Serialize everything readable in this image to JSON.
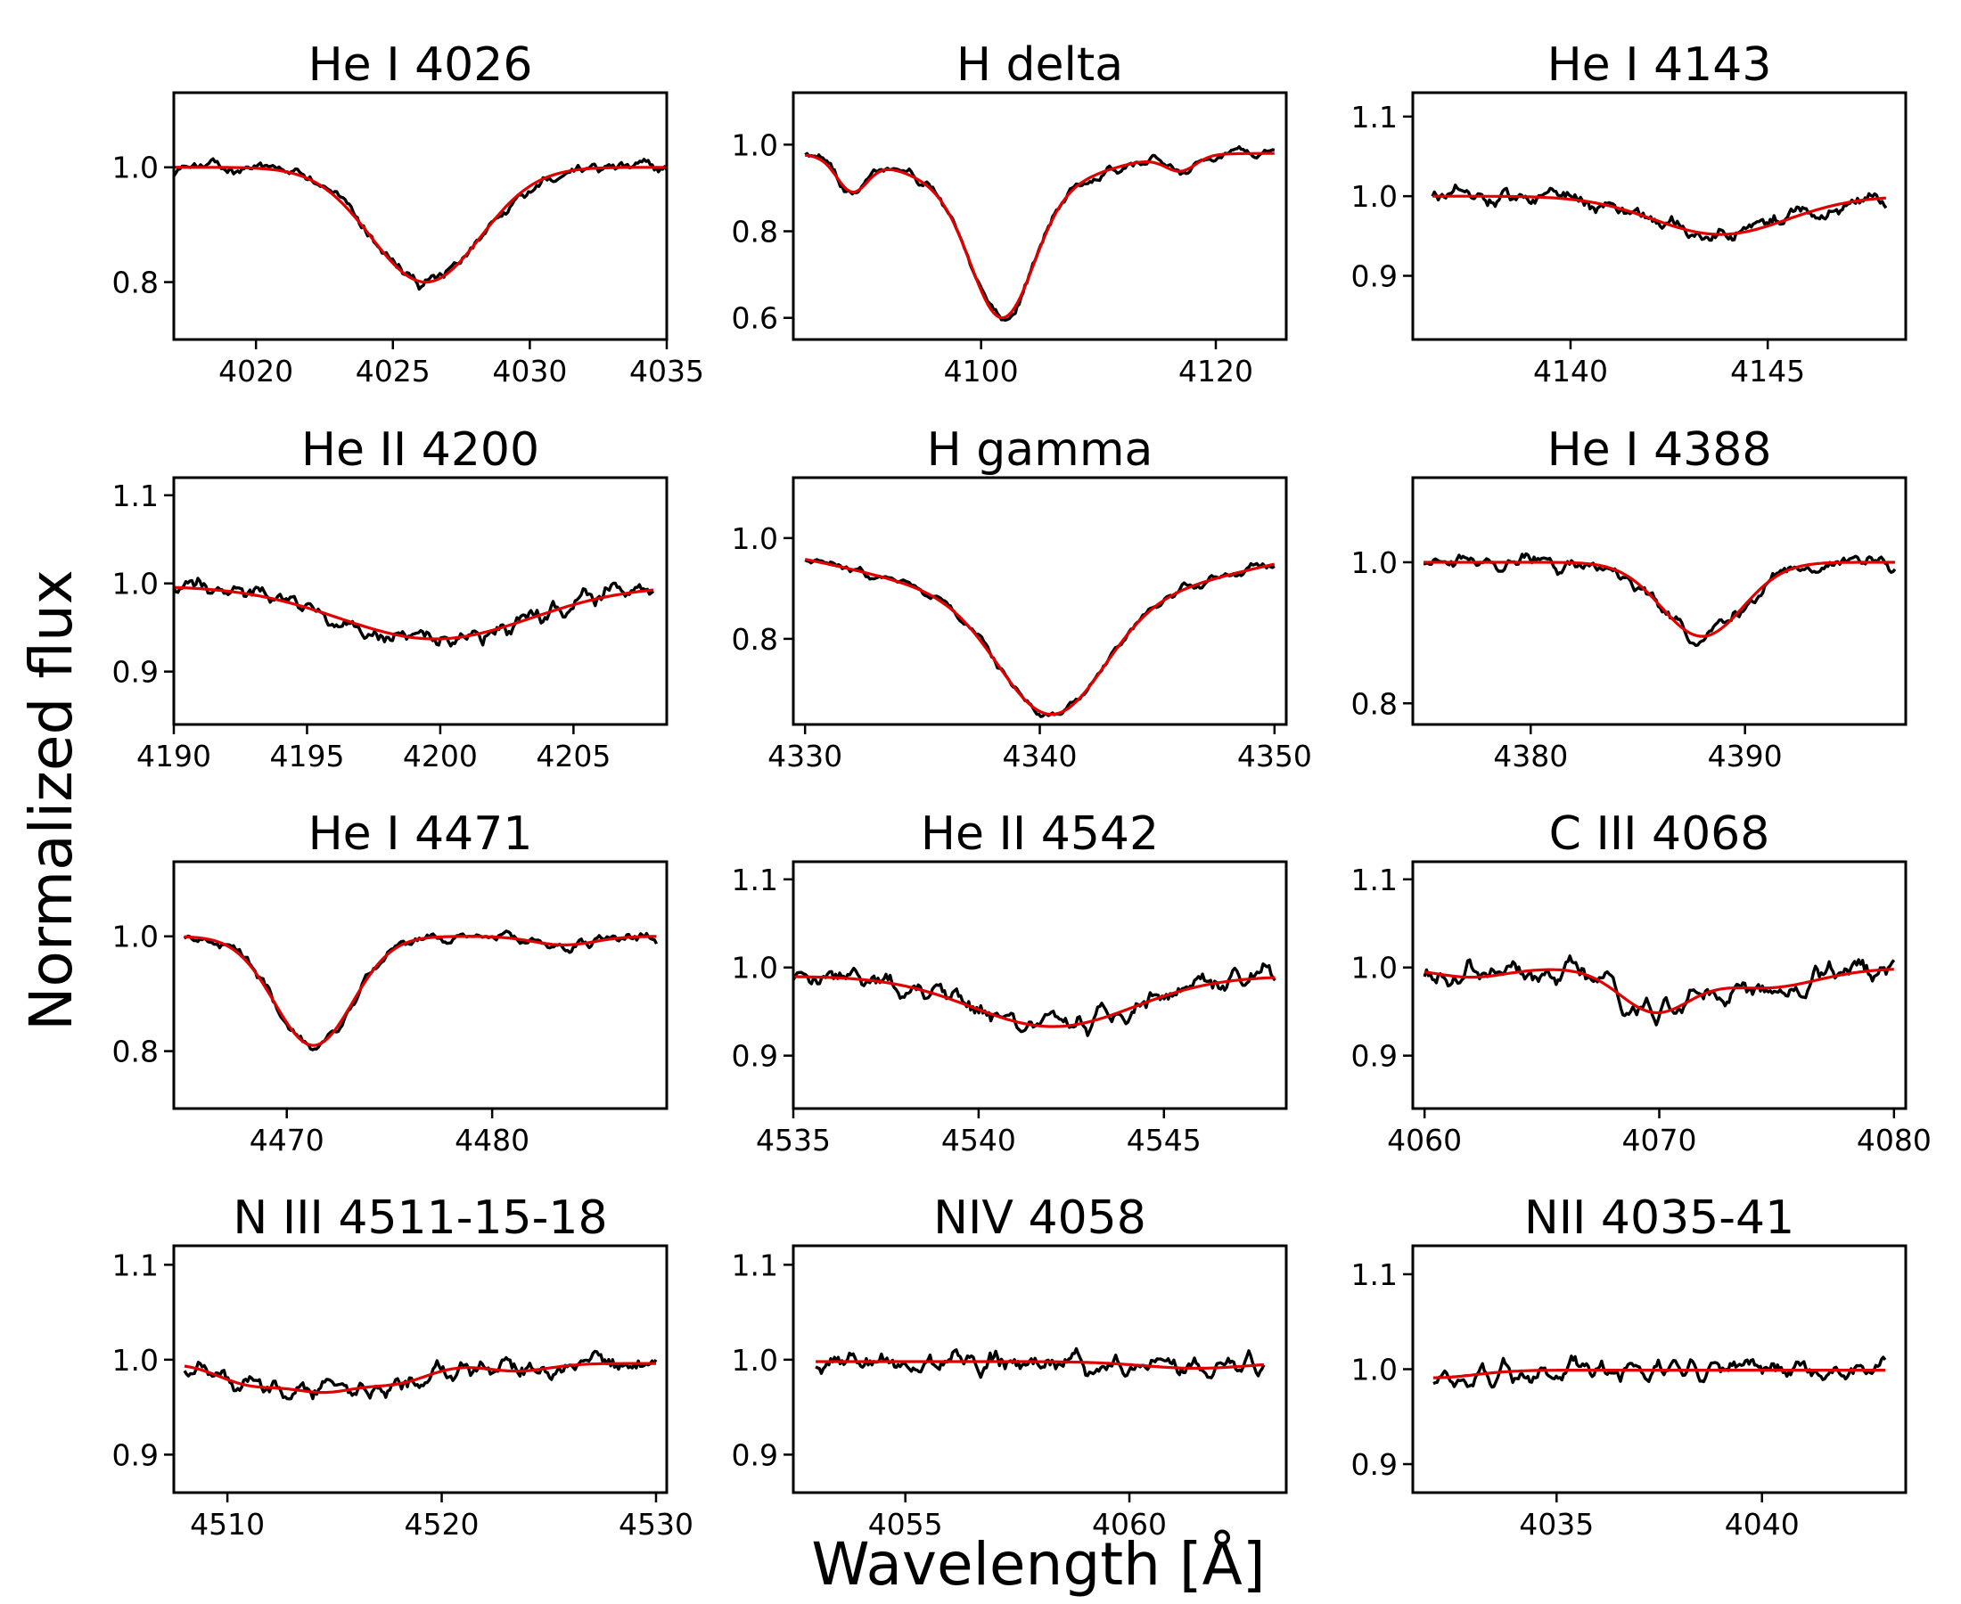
{
  "figure": {
    "xlabel": "Wavelength [Å]",
    "ylabel": "Normalized flux",
    "observed_color": "#000000",
    "model_color": "#e00000"
  },
  "chart_data": [
    {
      "type": "line",
      "title": "He I 4026",
      "xlim": [
        4017,
        4035
      ],
      "ylim": [
        0.7,
        1.13
      ],
      "xticks": [
        4020,
        4025,
        4030,
        4035
      ],
      "yticks": [
        0.8,
        1.0
      ],
      "ytick_labels": [
        "0.8",
        "1.0"
      ],
      "profile": {
        "continuum": 1.0,
        "lines": [
          {
            "center": 4026.2,
            "depth": 0.2,
            "width": 2.0
          }
        ],
        "noise": 0.012
      },
      "series": [
        {
          "role": "observed",
          "x": [
            4017,
            4035
          ]
        },
        {
          "role": "model",
          "x": [
            4017,
            4035
          ]
        }
      ]
    },
    {
      "type": "line",
      "title": "H delta",
      "xlim": [
        4084,
        4126
      ],
      "ylim": [
        0.55,
        1.12
      ],
      "xticks": [
        4100,
        4120
      ],
      "yticks": [
        0.6,
        0.8,
        1.0
      ],
      "ytick_labels": [
        "0.6",
        "0.8",
        "1.0"
      ],
      "profile": {
        "continuum": 0.98,
        "lines": [
          {
            "center": 4101.8,
            "depth": 0.28,
            "width": 2.6
          },
          {
            "center": 4101.8,
            "depth": 0.1,
            "width": 6.5
          },
          {
            "center": 4089,
            "depth": 0.075,
            "width": 1.3
          },
          {
            "center": 4117,
            "depth": 0.035,
            "width": 1.3
          }
        ],
        "noise": 0.012
      },
      "series": [
        {
          "role": "observed",
          "x": [
            4085,
            4125
          ]
        },
        {
          "role": "model",
          "x": [
            4085,
            4125
          ]
        }
      ]
    },
    {
      "type": "line",
      "title": "He I 4143",
      "xlim": [
        4136,
        4148.5
      ],
      "ylim": [
        0.82,
        1.13
      ],
      "xticks": [
        4140,
        4145
      ],
      "yticks": [
        0.9,
        1.0,
        1.1
      ],
      "ytick_labels": [
        "0.9",
        "1.0",
        "1.1"
      ],
      "profile": {
        "continuum": 1.0,
        "lines": [
          {
            "center": 4143.8,
            "depth": 0.048,
            "width": 1.7
          }
        ],
        "noise": 0.011
      },
      "series": [
        {
          "role": "observed",
          "x": [
            4136.5,
            4148
          ]
        },
        {
          "role": "model",
          "x": [
            4136.5,
            4148
          ]
        }
      ]
    },
    {
      "type": "line",
      "title": "He II 4200",
      "xlim": [
        4190,
        4208.5
      ],
      "ylim": [
        0.84,
        1.12
      ],
      "xticks": [
        4190,
        4195,
        4200,
        4205
      ],
      "yticks": [
        0.9,
        1.0,
        1.1
      ],
      "ytick_labels": [
        "0.9",
        "1.0",
        "1.1"
      ],
      "profile": {
        "continuum": 0.997,
        "lines": [
          {
            "center": 4199.8,
            "depth": 0.06,
            "width": 3.6
          }
        ],
        "noise": 0.011
      },
      "series": [
        {
          "role": "observed",
          "x": [
            4190,
            4208
          ]
        },
        {
          "role": "model",
          "x": [
            4190,
            4208
          ]
        }
      ]
    },
    {
      "type": "line",
      "title": "H gamma",
      "xlim": [
        4329.5,
        4350.5
      ],
      "ylim": [
        0.63,
        1.12
      ],
      "xticks": [
        4330,
        4340,
        4350
      ],
      "yticks": [
        0.8,
        1.0
      ],
      "ytick_labels": [
        "0.8",
        "1.0"
      ],
      "profile": {
        "continuum": 1.0,
        "lines": [
          {
            "center": 4340.5,
            "depth": 0.22,
            "width": 2.2
          },
          {
            "center": 4340.5,
            "depth": 0.13,
            "width": 7.0
          }
        ],
        "noise": 0.008
      },
      "series": [
        {
          "role": "observed",
          "x": [
            4330,
            4350
          ]
        },
        {
          "role": "model",
          "x": [
            4330,
            4350
          ]
        }
      ]
    },
    {
      "type": "line",
      "title": "He I 4388",
      "xlim": [
        4374.5,
        4397.5
      ],
      "ylim": [
        0.77,
        1.12
      ],
      "xticks": [
        4380,
        4390
      ],
      "yticks": [
        0.8,
        1.0
      ],
      "ytick_labels": [
        "0.8",
        "1.0"
      ],
      "profile": {
        "continuum": 1.0,
        "lines": [
          {
            "center": 4388.0,
            "depth": 0.105,
            "width": 1.9
          }
        ],
        "noise": 0.011
      },
      "series": [
        {
          "role": "observed",
          "x": [
            4375,
            4397
          ]
        },
        {
          "role": "model",
          "x": [
            4375,
            4397
          ]
        }
      ]
    },
    {
      "type": "line",
      "title": "He I 4471",
      "xlim": [
        4464.5,
        4488.5
      ],
      "ylim": [
        0.7,
        1.13
      ],
      "xticks": [
        4470,
        4480
      ],
      "yticks": [
        0.8,
        1.0
      ],
      "ytick_labels": [
        "0.8",
        "1.0"
      ],
      "profile": {
        "continuum": 1.0,
        "lines": [
          {
            "center": 4471.3,
            "depth": 0.19,
            "width": 1.9
          },
          {
            "center": 4483.5,
            "depth": 0.015,
            "width": 1.5
          }
        ],
        "noise": 0.01
      },
      "series": [
        {
          "role": "observed",
          "x": [
            4465,
            4488
          ]
        },
        {
          "role": "model",
          "x": [
            4465,
            4488
          ]
        }
      ]
    },
    {
      "type": "line",
      "title": "He II 4542",
      "xlim": [
        4535,
        4548.3
      ],
      "ylim": [
        0.84,
        1.12
      ],
      "xticks": [
        4535,
        4540,
        4545
      ],
      "yticks": [
        0.9,
        1.0,
        1.1
      ],
      "ytick_labels": [
        "0.9",
        "1.0",
        "1.1"
      ],
      "profile": {
        "continuum": 0.99,
        "lines": [
          {
            "center": 4542.0,
            "depth": 0.057,
            "width": 2.2
          }
        ],
        "noise": 0.012
      },
      "series": [
        {
          "role": "observed",
          "x": [
            4535,
            4548
          ]
        },
        {
          "role": "model",
          "x": [
            4535,
            4548
          ]
        }
      ]
    },
    {
      "type": "line",
      "title": "C III 4068",
      "xlim": [
        4059.5,
        4080.5
      ],
      "ylim": [
        0.84,
        1.12
      ],
      "xticks": [
        4060,
        4070,
        4080
      ],
      "yticks": [
        0.9,
        1.0,
        1.1
      ],
      "ytick_labels": [
        "0.9",
        "1.0",
        "1.1"
      ],
      "profile": {
        "continuum": 0.999,
        "lines": [
          {
            "center": 4069.8,
            "depth": 0.048,
            "width": 1.5
          },
          {
            "center": 4062,
            "depth": 0.01,
            "width": 1.5
          },
          {
            "center": 4074.5,
            "depth": 0.022,
            "width": 2.2
          }
        ],
        "noise": 0.014
      },
      "series": [
        {
          "role": "observed",
          "x": [
            4060,
            4080
          ]
        },
        {
          "role": "model",
          "x": [
            4060,
            4080
          ]
        }
      ]
    },
    {
      "type": "line",
      "title": "N III 4511-15-18",
      "xlim": [
        4507.5,
        4530.5
      ],
      "ylim": [
        0.86,
        1.12
      ],
      "xticks": [
        4510,
        4520,
        4530
      ],
      "yticks": [
        0.9,
        1.0,
        1.1
      ],
      "ytick_labels": [
        "0.9",
        "1.0",
        "1.1"
      ],
      "profile": {
        "continuum": 0.996,
        "lines": [
          {
            "center": 4511,
            "depth": 0.02,
            "width": 1.5
          },
          {
            "center": 4514.5,
            "depth": 0.028,
            "width": 1.7
          },
          {
            "center": 4518,
            "depth": 0.018,
            "width": 1.5
          },
          {
            "center": 4523.5,
            "depth": 0.008,
            "width": 1.5
          }
        ],
        "noise": 0.011
      },
      "series": [
        {
          "role": "observed",
          "x": [
            4508,
            4530
          ]
        },
        {
          "role": "model",
          "x": [
            4508,
            4530
          ]
        }
      ]
    },
    {
      "type": "line",
      "title": "NIV 4058",
      "xlim": [
        4052.5,
        4063.5
      ],
      "ylim": [
        0.86,
        1.12
      ],
      "xticks": [
        4055,
        4060
      ],
      "yticks": [
        0.9,
        1.0,
        1.1
      ],
      "ytick_labels": [
        "0.9",
        "1.0",
        "1.1"
      ],
      "profile": {
        "continuum": 0.998,
        "lines": [
          {
            "center": 4061.5,
            "depth": 0.007,
            "width": 1.2
          }
        ],
        "noise": 0.011
      },
      "series": [
        {
          "role": "observed",
          "x": [
            4053,
            4063
          ]
        },
        {
          "role": "model",
          "x": [
            4053,
            4063
          ]
        }
      ]
    },
    {
      "type": "line",
      "title": "NII 4035-41",
      "xlim": [
        4031.5,
        4043.5
      ],
      "ylim": [
        0.87,
        1.13
      ],
      "xticks": [
        4035,
        4040
      ],
      "yticks": [
        0.9,
        1.0,
        1.1
      ],
      "ytick_labels": [
        "0.9",
        "1.0",
        "1.1"
      ],
      "profile": {
        "continuum": 0.999,
        "lines": [
          {
            "center": 4032,
            "depth": 0.008,
            "width": 1.0
          }
        ],
        "noise": 0.011
      },
      "series": [
        {
          "role": "observed",
          "x": [
            4032,
            4043
          ]
        },
        {
          "role": "model",
          "x": [
            4032,
            4043
          ]
        }
      ]
    }
  ]
}
